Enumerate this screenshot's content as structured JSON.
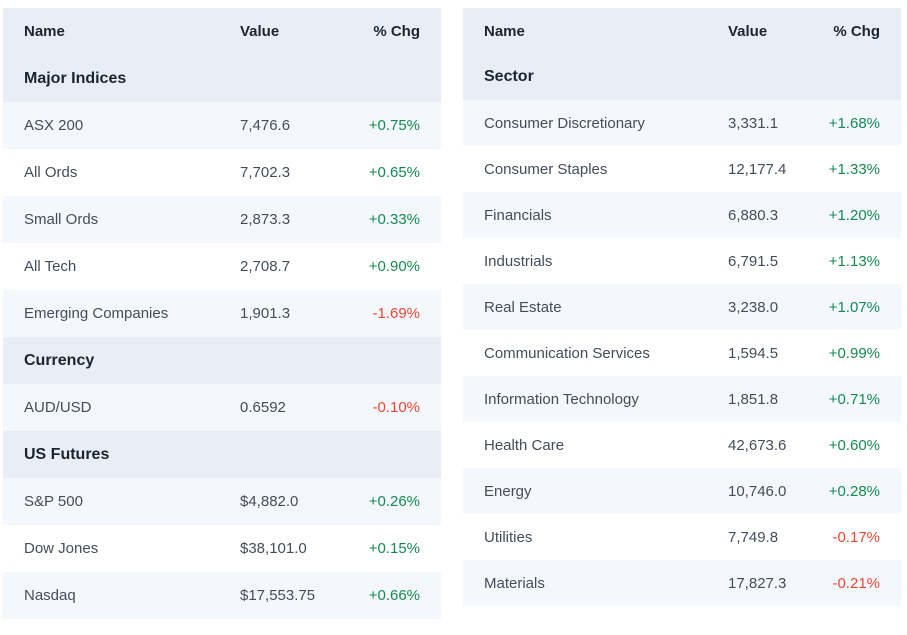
{
  "colors": {
    "header_row_bg": "#e9eef6",
    "alt_row_bg": "#f4f8fc",
    "row_bg": "#ffffff",
    "heading_text": "#1b2530",
    "body_text": "#434d59",
    "positive_change": "#148a51",
    "negative_change": "#ef4632"
  },
  "chart_data": [
    {
      "type": "table",
      "name": "market-summary",
      "columns": [
        "Name",
        "Value",
        "% Chg"
      ],
      "sections": [
        {
          "title": "Major Indices",
          "rows": [
            [
              "ASX 200",
              "7,476.6",
              "+0.75%"
            ],
            [
              "All Ords",
              "7,702.3",
              "+0.65%"
            ],
            [
              "Small Ords",
              "2,873.3",
              "+0.33%"
            ],
            [
              "All Tech",
              "2,708.7",
              "+0.90%"
            ],
            [
              "Emerging Companies",
              "1,901.3",
              "-1.69%"
            ]
          ]
        },
        {
          "title": "Currency",
          "rows": [
            [
              "AUD/USD",
              "0.6592",
              "-0.10%"
            ]
          ]
        },
        {
          "title": "US Futures",
          "rows": [
            [
              "S&P 500",
              "$4,882.0",
              "+0.26%"
            ],
            [
              "Dow Jones",
              "$38,101.0",
              "+0.15%"
            ],
            [
              "Nasdaq",
              "$17,553.75",
              "+0.66%"
            ]
          ]
        }
      ]
    },
    {
      "type": "table",
      "name": "sectors",
      "columns": [
        "Name",
        "Value",
        "% Chg"
      ],
      "sections": [
        {
          "title": "Sector",
          "rows": [
            [
              "Consumer Discretionary",
              "3,331.1",
              "+1.68%"
            ],
            [
              "Consumer Staples",
              "12,177.4",
              "+1.33%"
            ],
            [
              "Financials",
              "6,880.3",
              "+1.20%"
            ],
            [
              "Industrials",
              "6,791.5",
              "+1.13%"
            ],
            [
              "Real Estate",
              "3,238.0",
              "+1.07%"
            ],
            [
              "Communication Services",
              "1,594.5",
              "+0.99%"
            ],
            [
              "Information Technology",
              "1,851.8",
              "+0.71%"
            ],
            [
              "Health Care",
              "42,673.6",
              "+0.60%"
            ],
            [
              "Energy",
              "10,746.0",
              "+0.28%"
            ],
            [
              "Utilities",
              "7,749.8",
              "-0.17%"
            ],
            [
              "Materials",
              "17,827.3",
              "-0.21%"
            ]
          ]
        }
      ]
    }
  ]
}
